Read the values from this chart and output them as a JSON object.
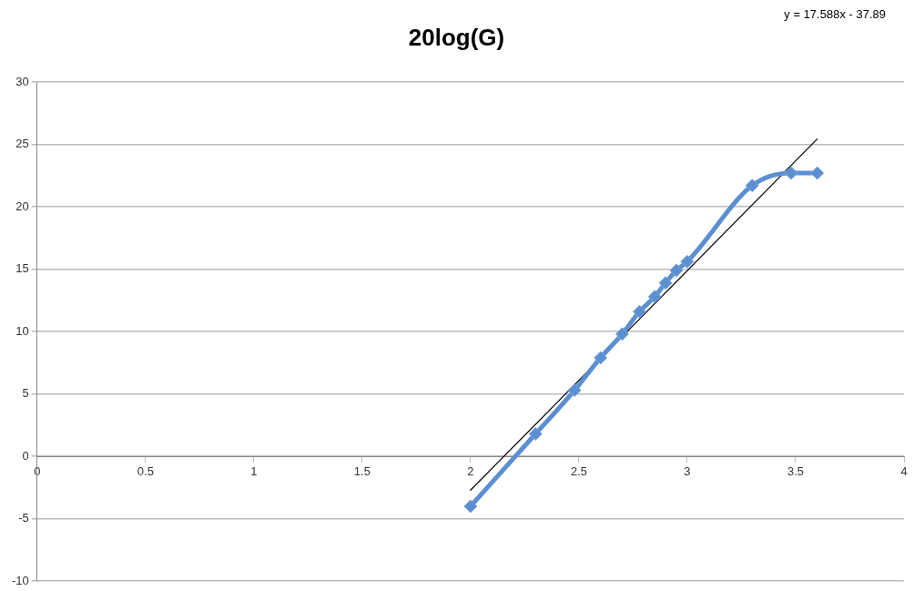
{
  "chart_data": {
    "type": "line",
    "title": "20log(G)",
    "annotations": [
      "y = 17.588x - 37.89"
    ],
    "xlim": [
      0,
      4
    ],
    "xticks": [
      0,
      0.5,
      1,
      1.5,
      2,
      2.5,
      3,
      3.5,
      4
    ],
    "ylim": [
      -10,
      30
    ],
    "yticks": [
      -10,
      -5,
      0,
      5,
      10,
      15,
      20,
      25,
      30
    ],
    "grid": "y",
    "legend": false,
    "marker": "diamond",
    "line_style": "solid",
    "series": [
      {
        "color": "#5b8fd0",
        "x": [
          2,
          2.3,
          2.48,
          2.6,
          2.7,
          2.78,
          2.85,
          2.9,
          2.95,
          3,
          3.3,
          3.48,
          3.6
        ],
        "values": [
          -4,
          1.8,
          5.3,
          7.9,
          9.8,
          11.6,
          12.8,
          13.9,
          14.9,
          15.6,
          21.7,
          22.7,
          22.7
        ]
      },
      {
        "type": "line",
        "marker": "none",
        "color": "#000000",
        "x": [
          2,
          3.6
        ],
        "values": [
          -2.71,
          25.43
        ]
      }
    ]
  }
}
